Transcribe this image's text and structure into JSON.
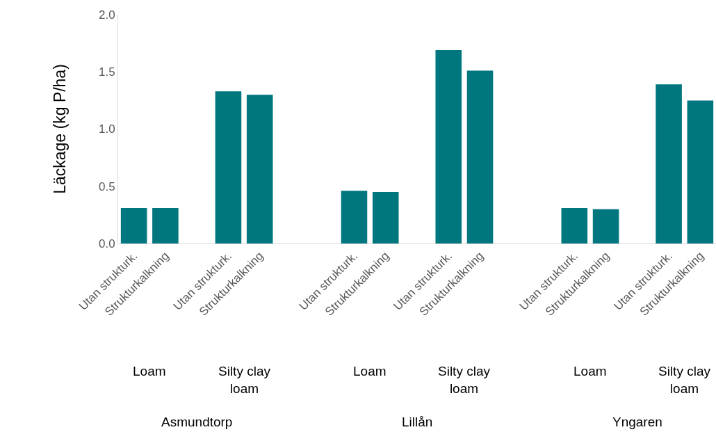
{
  "chart_data": {
    "type": "bar",
    "ylabel": "Läckage (kg P/ha)",
    "categories": [
      "Utan strukturk.",
      "Strukturkalkning",
      null,
      "Utan strukturk.",
      "Strukturkalkning",
      null,
      null,
      "Utan strukturk.",
      "Strukturkalkning",
      null,
      "Utan strukturk.",
      "Strukturkalkning",
      null,
      null,
      "Utan strukturk.",
      "Strukturkalkning",
      null,
      "Utan strukturk.",
      "Strukturkalkning"
    ],
    "values": [
      0.31,
      0.31,
      null,
      1.33,
      1.3,
      null,
      null,
      0.46,
      0.45,
      null,
      1.69,
      1.51,
      null,
      null,
      0.31,
      0.3,
      null,
      1.39,
      1.25
    ],
    "color": "#00767f",
    "ylim": [
      0,
      2
    ],
    "yticks": [
      {
        "value": 0,
        "label": "0.0"
      },
      {
        "value": 0.5,
        "label": "0.5"
      },
      {
        "value": 1,
        "label": "1.0"
      },
      {
        "value": 1.5,
        "label": "1.5"
      },
      {
        "value": 2,
        "label": "2.0"
      }
    ],
    "grid": false,
    "annotations": [
      "Loam",
      "Silty clay loam",
      "Loam",
      "Silty clay loam",
      "Loam",
      "Silty clay loam",
      "Asmundtorp",
      "Lillån",
      "Yngaren"
    ]
  }
}
